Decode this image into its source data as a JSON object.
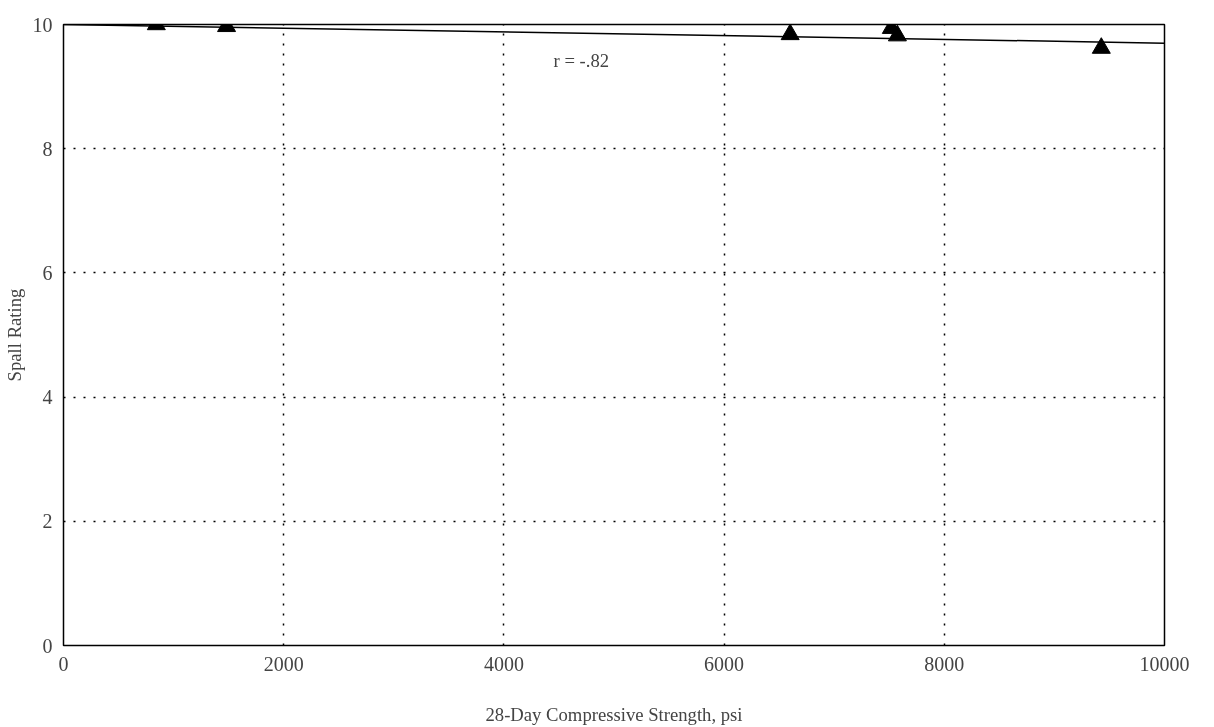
{
  "chart_data": {
    "type": "scatter",
    "xlabel": "28-Day Compressive Strength, psi",
    "ylabel": "Spall Rating",
    "xlim": [
      0,
      10000
    ],
    "xticks": [
      0,
      2000,
      4000,
      6000,
      8000,
      10000
    ],
    "ylim": [
      0,
      10
    ],
    "yticks": [
      0,
      2,
      4,
      6,
      8,
      10
    ],
    "grid": true,
    "marker": "triangle",
    "series": [
      {
        "color": "#000000",
        "x": [
          843,
          1481,
          6600,
          7519,
          7574,
          9426
        ],
        "values": [
          10.0,
          9.97,
          9.84,
          9.94,
          9.82,
          9.62
        ]
      },
      {
        "type": "line",
        "color": "#000000",
        "line_style": "solid",
        "marker": "none",
        "x": [
          0,
          10000
        ],
        "values": [
          10.0,
          9.7
        ]
      }
    ],
    "annotations": [
      "r = -.82"
    ]
  }
}
